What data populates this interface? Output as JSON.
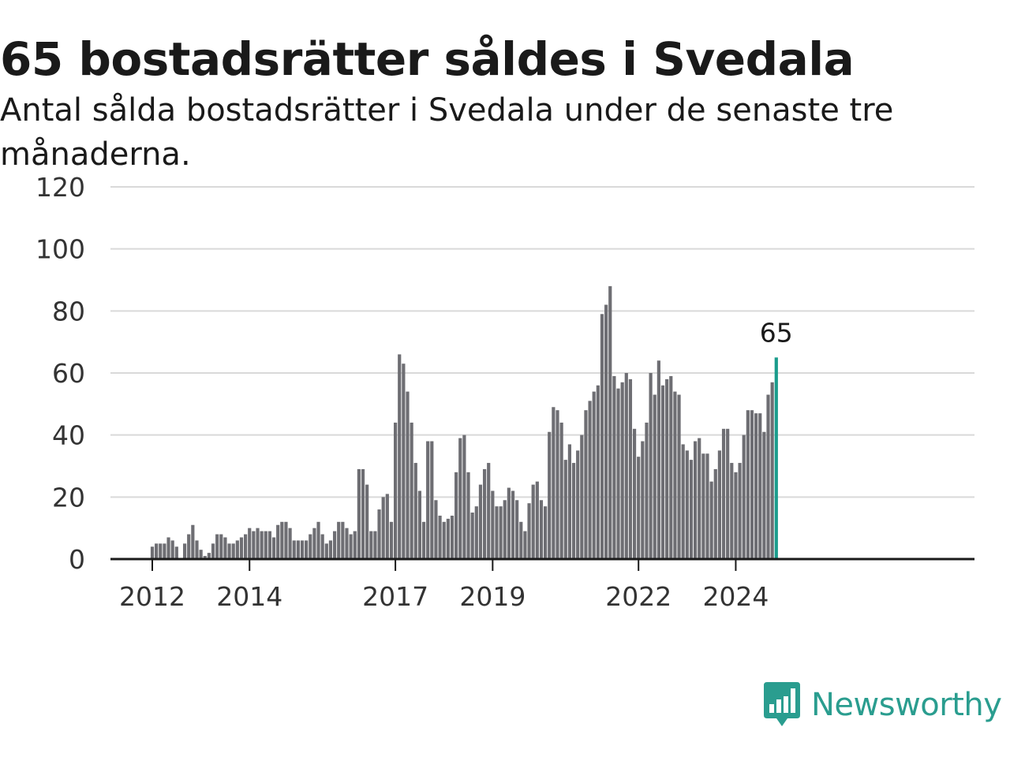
{
  "title": "65 bostadsrätter såldes i Svedala",
  "subtitle": "Antal sålda bostadsrätter i Svedala under de senaste tre månaderna.",
  "brand": "Newsworthy",
  "colors": {
    "bar": "#6e6e73",
    "highlight": "#1a9c8c",
    "grid": "#d9d9d9",
    "axis": "#1a1a1a",
    "brand": "#2a9d8f"
  },
  "chart_data": {
    "type": "bar",
    "title": "65 bostadsrätter såldes i Svedala",
    "subtitle": "Antal sålda bostadsrätter i Svedala under de senaste tre månaderna.",
    "xlabel": "",
    "ylabel": "",
    "ylim": [
      0,
      120
    ],
    "yticks": [
      0,
      20,
      40,
      60,
      80,
      100,
      120
    ],
    "grid": true,
    "x_start": "2012-01",
    "x_tick_labels": [
      {
        "label": "2012",
        "month": "2012-01"
      },
      {
        "label": "2014",
        "month": "2014-01"
      },
      {
        "label": "2017",
        "month": "2017-01"
      },
      {
        "label": "2019",
        "month": "2019-01"
      },
      {
        "label": "2022",
        "month": "2022-01"
      },
      {
        "label": "2024",
        "month": "2024-01"
      }
    ],
    "values": [
      4,
      5,
      5,
      5,
      7,
      6,
      4,
      0,
      5,
      8,
      11,
      6,
      3,
      1,
      2,
      5,
      8,
      8,
      7,
      5,
      5,
      6,
      7,
      8,
      10,
      9,
      10,
      9,
      9,
      9,
      7,
      11,
      12,
      12,
      10,
      6,
      6,
      6,
      6,
      8,
      10,
      12,
      8,
      5,
      6,
      9,
      12,
      12,
      10,
      8,
      9,
      29,
      29,
      24,
      9,
      9,
      16,
      20,
      21,
      12,
      44,
      66,
      63,
      54,
      44,
      31,
      22,
      12,
      38,
      38,
      19,
      14,
      12,
      13,
      14,
      28,
      39,
      40,
      28,
      15,
      17,
      24,
      29,
      31,
      22,
      17,
      17,
      19,
      23,
      22,
      19,
      12,
      9,
      18,
      24,
      25,
      19,
      17,
      41,
      49,
      48,
      44,
      32,
      37,
      31,
      35,
      40,
      48,
      51,
      54,
      56,
      79,
      82,
      88,
      59,
      55,
      57,
      60,
      58,
      42,
      33,
      38,
      44,
      60,
      53,
      64,
      56,
      58,
      59,
      54,
      53,
      37,
      35,
      32,
      38,
      39,
      34,
      34,
      25,
      29,
      35,
      42,
      42,
      31,
      28,
      31,
      40,
      48,
      48,
      47,
      47,
      41,
      53,
      57,
      65
    ],
    "highlight": {
      "label": "65",
      "value": 65,
      "month": "2024-11"
    }
  }
}
